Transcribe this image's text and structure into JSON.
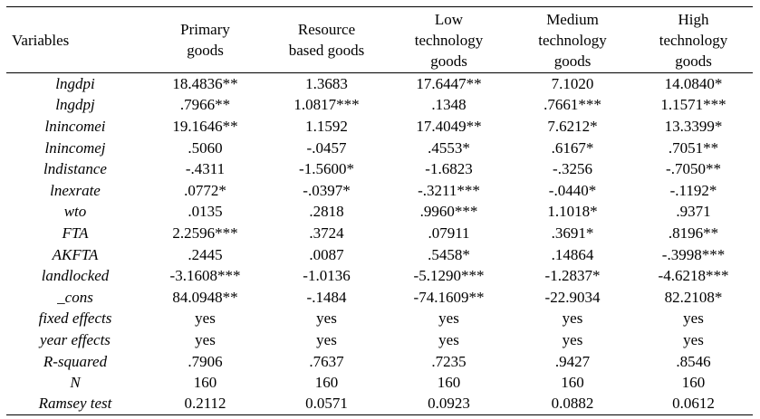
{
  "header": {
    "variables": "Variables",
    "col1": [
      "Primary",
      "goods"
    ],
    "col2": [
      "Resource",
      "based goods"
    ],
    "col3": [
      "Low",
      "technology",
      "goods"
    ],
    "col4": [
      "Medium",
      "technology",
      "goods"
    ],
    "col5": [
      "High",
      "technology",
      "goods"
    ]
  },
  "rows": [
    {
      "label": "lngdpi",
      "values": [
        "18.4836**",
        "1.3683",
        "17.6447**",
        "7.1020",
        "14.0840*"
      ]
    },
    {
      "label": "lngdpj",
      "values": [
        ".7966**",
        "1.0817***",
        ".1348",
        ".7661***",
        "1.1571***"
      ]
    },
    {
      "label": "lnincomei",
      "values": [
        "19.1646**",
        "1.1592",
        "17.4049**",
        "7.6212*",
        "13.3399*"
      ]
    },
    {
      "label": "lnincomej",
      "values": [
        ".5060",
        "-.0457",
        ".4553*",
        ".6167*",
        ".7051**"
      ]
    },
    {
      "label": "lndistance",
      "values": [
        "-.4311",
        "-1.5600*",
        "-1.6823",
        "-.3256",
        "-.7050**"
      ]
    },
    {
      "label": "lnexrate",
      "values": [
        ".0772*",
        "-.0397*",
        "-.3211***",
        "-.0440*",
        "-.1192*"
      ]
    },
    {
      "label": "wto",
      "values": [
        ".0135",
        ".2818",
        ".9960***",
        "1.1018*",
        ".9371"
      ]
    },
    {
      "label": "FTA",
      "values": [
        "2.2596***",
        ".3724",
        ".07911",
        ".3691*",
        ".8196**"
      ]
    },
    {
      "label": "AKFTA",
      "values": [
        ".2445",
        ".0087",
        ".5458*",
        ".14864",
        "-.3998***"
      ]
    },
    {
      "label": "landlocked",
      "values": [
        "-3.1608***",
        "-1.0136",
        "-5.1290***",
        "-1.2837*",
        "-4.6218***"
      ]
    },
    {
      "label": "_cons",
      "values": [
        "84.0948**",
        "-.1484",
        "-74.1609**",
        "-22.9034",
        "82.2108*"
      ]
    },
    {
      "label": "fixed effects",
      "values": [
        "yes",
        "yes",
        "yes",
        "yes",
        "yes"
      ]
    },
    {
      "label": "year effects",
      "values": [
        "yes",
        "yes",
        "yes",
        "yes",
        "yes"
      ]
    },
    {
      "label": "R-squared",
      "values": [
        ".7906",
        ".7637",
        ".7235",
        ".9427",
        ".8546"
      ]
    },
    {
      "label": "N",
      "values": [
        "160",
        "160",
        "160",
        "160",
        "160"
      ]
    },
    {
      "label": "Ramsey test",
      "values": [
        "0.2112",
        "0.0571",
        "0.0923",
        "0.0882",
        "0.0612"
      ]
    }
  ]
}
